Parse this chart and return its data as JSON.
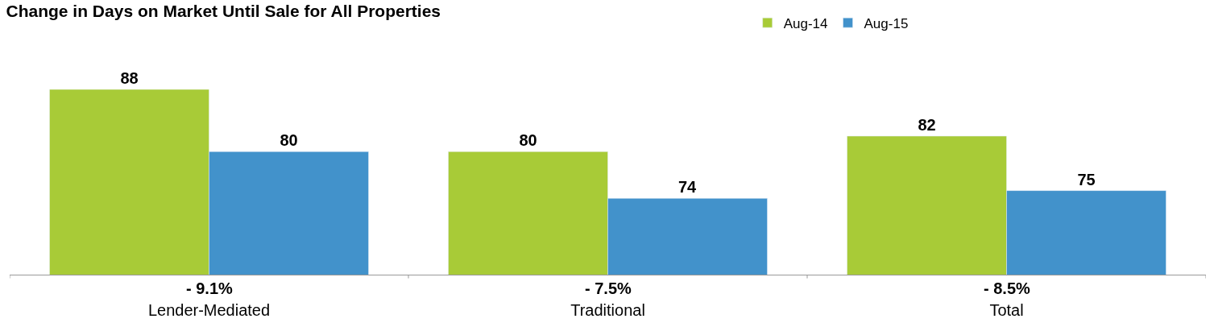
{
  "chart_data": {
    "type": "bar",
    "title": "Change in Days on Market Until Sale for All Properties",
    "categories": [
      "Lender-Mediated",
      "Traditional",
      "Total"
    ],
    "series": [
      {
        "name": "Aug-14",
        "color": "#a8cb37",
        "values": [
          88,
          80,
          82
        ]
      },
      {
        "name": "Aug-15",
        "color": "#4292cb",
        "values": [
          80,
          74,
          75
        ]
      }
    ],
    "data_labels": true,
    "legend": "top",
    "tick_labels": "x",
    "annotations": [
      {
        "text": "- 9.1%",
        "x": "Lender-Mediated"
      },
      {
        "text": "- 7.5%",
        "x": "Traditional"
      },
      {
        "text": "- 8.5%",
        "x": "Total"
      }
    ]
  }
}
